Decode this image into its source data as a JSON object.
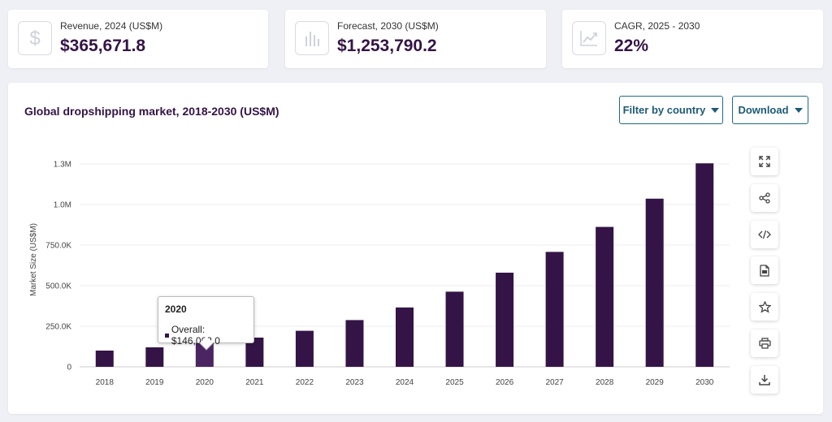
{
  "kpis": [
    {
      "label": "Revenue, 2024 (US$M)",
      "value": "$365,671.8",
      "icon": "dollar-icon"
    },
    {
      "label": "Forecast, 2030 (US$M)",
      "value": "$1,253,790.2",
      "icon": "bar-chart-icon"
    },
    {
      "label": "CAGR, 2025 - 2030",
      "value": "22%",
      "icon": "trend-up-icon"
    }
  ],
  "panel": {
    "title": "Global dropshipping market, 2018-2030 (US$M)",
    "filter_label": "Filter by country",
    "download_label": "Download"
  },
  "tools": [
    "expand-icon",
    "share-icon",
    "embed-code-icon",
    "pdf-file-icon",
    "star-icon",
    "print-icon",
    "download-icon"
  ],
  "tooltip": {
    "title": "2020",
    "text": "Overall: $146,063.0"
  },
  "colors": {
    "bar": "#341446",
    "bar_highlight": "#4a2562",
    "accent": "#1e6a86"
  },
  "chart_data": {
    "type": "bar",
    "title": "Global dropshipping market, 2018-2030 (US$M)",
    "ylabel": "Market Size (US$M)",
    "xlabel": "",
    "categories": [
      "2018",
      "2019",
      "2020",
      "2021",
      "2022",
      "2023",
      "2024",
      "2025",
      "2026",
      "2027",
      "2028",
      "2029",
      "2030"
    ],
    "series": [
      {
        "name": "Overall",
        "values": [
          100000,
          120000,
          146063,
          180000,
          222000,
          288000,
          365671.8,
          463000,
          580000,
          708000,
          862000,
          1036000,
          1253790.2
        ]
      }
    ],
    "ylim": [
      0,
      1250000
    ],
    "yticks": [
      0,
      250000,
      500000,
      750000,
      1000000,
      1250000
    ],
    "ytick_labels": [
      "0",
      "250.0K",
      "500.0K",
      "750.0K",
      "1.0M",
      "1.3M"
    ],
    "highlight": "2020",
    "grid": true,
    "legend": "none"
  }
}
